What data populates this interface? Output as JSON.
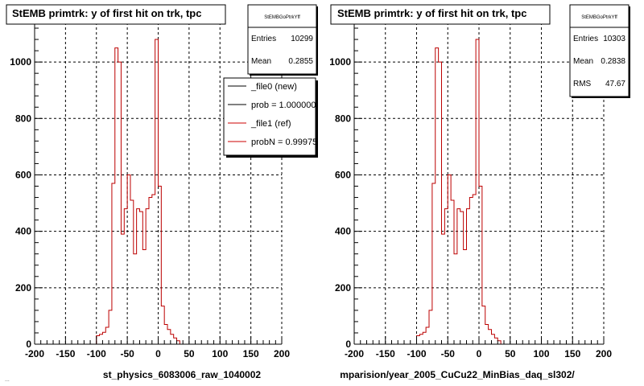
{
  "footer_text": "...",
  "colors": {
    "ref": "#cc0000",
    "new": "#000000",
    "grid": "#000000"
  },
  "chart_data": [
    {
      "type": "histogram",
      "title": "StEMB primtrk: y of first hit on trk, tpc",
      "xlabel": "st_physics_6083006_raw_1040002",
      "ylabel": "",
      "xlim": [
        -200,
        200
      ],
      "ylim": [
        0,
        1140
      ],
      "x_ticks": [
        -200,
        -150,
        -100,
        -50,
        0,
        50,
        100,
        150,
        200
      ],
      "y_ticks": [
        0,
        200,
        400,
        600,
        800,
        1000
      ],
      "grid": true,
      "bin_edges_start": -100,
      "bin_width": 5,
      "values": [
        30,
        35,
        42,
        60,
        120,
        570,
        1050,
        1000,
        390,
        480,
        600,
        510,
        320,
        480,
        470,
        335,
        480,
        520,
        530,
        1080,
        560,
        135,
        70,
        52,
        35,
        22,
        12
      ],
      "stats": {
        "title": "StEMBGoPtrkYff",
        "entries_label": "Entries",
        "entries": "10299",
        "mean_label": "Mean",
        "mean": "0.2855"
      },
      "legend": {
        "placement": "top-right",
        "entries": [
          {
            "label": "_file0 (new)",
            "color": "#000000"
          },
          {
            "label": "prob = 1.000000",
            "color": "#000000"
          },
          {
            "label": "_file1 (ref)",
            "color": "#cc0000"
          },
          {
            "label": "probN = 0.99975",
            "color": "#cc0000"
          }
        ]
      }
    },
    {
      "type": "histogram",
      "title": "StEMB primtrk: y of first hit on trk, tpc",
      "xlabel": "mparision/year_2005_CuCu22_MinBias_daq_sl302/",
      "ylabel": "",
      "xlim": [
        -200,
        200
      ],
      "ylim": [
        0,
        1140
      ],
      "x_ticks": [
        -200,
        -150,
        -100,
        -50,
        0,
        50,
        100,
        150,
        200
      ],
      "y_ticks": [
        0,
        200,
        400,
        600,
        800,
        1000
      ],
      "grid": true,
      "bin_edges_start": -100,
      "bin_width": 5,
      "values": [
        30,
        35,
        42,
        60,
        120,
        570,
        1050,
        1000,
        390,
        480,
        600,
        510,
        320,
        480,
        470,
        335,
        480,
        520,
        530,
        1080,
        560,
        135,
        70,
        52,
        35,
        22,
        12
      ],
      "stats": {
        "title": "StEMBGoPtrkYff",
        "entries_label": "Entries",
        "entries": "10303",
        "mean_label": "Mean",
        "mean": "0.2838",
        "rms_label": "RMS",
        "rms": "47.67"
      }
    }
  ]
}
